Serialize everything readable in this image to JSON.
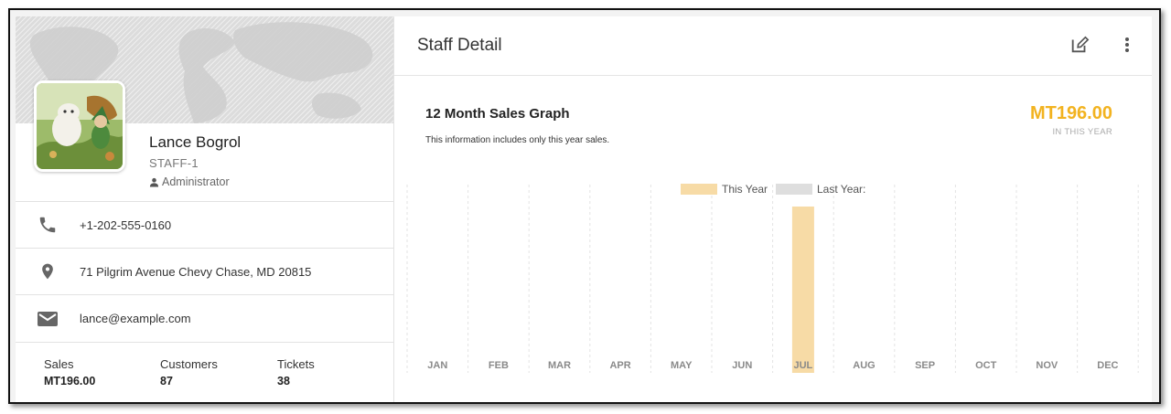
{
  "profile": {
    "name": "Lance Bogrol",
    "code": "STAFF-1",
    "role": "Administrator",
    "phone": "+1-202-555-0160",
    "address": "71 Pilgrim Avenue Chevy Chase, MD 20815",
    "email": "lance@example.com"
  },
  "stats": {
    "sales_label": "Sales",
    "sales_value": "MT196.00",
    "customers_label": "Customers",
    "customers_value": "87",
    "tickets_label": "Tickets",
    "tickets_value": "38"
  },
  "panel": {
    "title": "Staff Detail",
    "edit_icon": "edit-icon",
    "more_icon": "more-vert-icon"
  },
  "graph": {
    "title": "12 Month Sales Graph",
    "subtitle": "This information includes only this year sales.",
    "total": "MT196.00",
    "total_label": "IN THIS YEAR"
  },
  "colors": {
    "accent": "#f2b320",
    "this_year_bar": "#f7dba6",
    "last_year_bar": "#dedede"
  },
  "chart_data": {
    "type": "bar",
    "categories": [
      "JAN",
      "FEB",
      "MAR",
      "APR",
      "MAY",
      "JUN",
      "JUL",
      "AUG",
      "SEP",
      "OCT",
      "NOV",
      "DEC"
    ],
    "series": [
      {
        "name": "This Year",
        "values": [
          0,
          0,
          0,
          0,
          0,
          0,
          196,
          0,
          0,
          0,
          0,
          0
        ]
      },
      {
        "name": "Last Year:",
        "values": [
          0,
          0,
          0,
          0,
          0,
          0,
          0,
          0,
          0,
          0,
          0,
          0
        ]
      }
    ],
    "ylim": [
      0,
      196
    ],
    "grid": true,
    "legend": "top-center"
  }
}
